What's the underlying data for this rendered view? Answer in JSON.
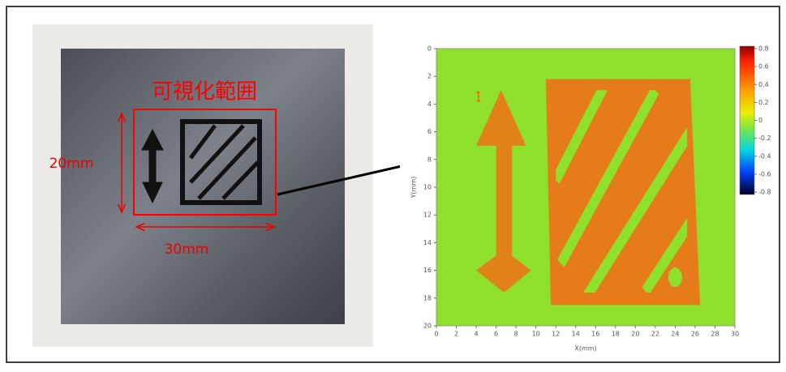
{
  "photo": {
    "region_label": "可視化範囲",
    "height_label": "20mm",
    "width_label": "30mm"
  },
  "chart_data": {
    "type": "heatmap",
    "xlabel": "X(mm)",
    "ylabel": "Y(mm)",
    "xlim": [
      0,
      30
    ],
    "xticks": [
      0,
      2,
      4,
      6,
      8,
      10,
      12,
      14,
      16,
      18,
      20,
      22,
      24,
      26,
      28,
      30
    ],
    "ylim": [
      0,
      20
    ],
    "yticks": [
      0,
      2,
      4,
      6,
      8,
      10,
      12,
      14,
      16,
      18,
      20
    ],
    "colorbar": {
      "lim": [
        -0.8,
        0.8
      ],
      "ticks": [
        0.8,
        0.6,
        0.4,
        0.2,
        0,
        -0.2,
        -0.4,
        -0.6,
        -0.8
      ]
    }
  }
}
